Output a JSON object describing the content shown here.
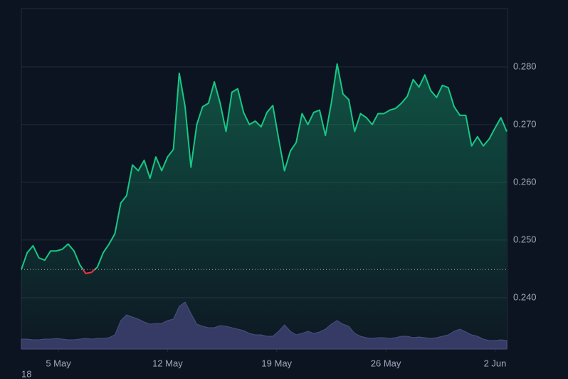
{
  "chart_data": {
    "type": "line",
    "x": [
      2.625,
      3,
      3.375,
      3.75,
      4.125,
      4.5,
      4.875,
      5.25,
      5.625,
      6,
      6.375,
      6.75,
      7.125,
      7.5,
      7.875,
      8.25,
      8.625,
      9,
      9.375,
      9.75,
      10.125,
      10.5,
      10.875,
      11.25,
      11.625,
      12,
      12.375,
      12.75,
      13.125,
      13.5,
      13.875,
      14.25,
      14.625,
      15,
      15.375,
      15.75,
      16.125,
      16.5,
      16.875,
      17.25,
      17.625,
      18,
      18.375,
      18.75,
      19.125,
      19.5,
      19.875,
      20.25,
      20.625,
      21,
      21.375,
      21.75,
      22.125,
      22.5,
      22.875,
      23.25,
      23.625,
      24,
      24.375,
      24.75,
      25.125,
      25.5,
      25.875,
      26.25,
      26.625,
      27,
      27.375,
      27.75,
      28.125,
      28.5,
      28.875,
      29.25,
      29.625,
      30,
      30.375,
      30.75,
      31.125,
      31.5,
      31.875,
      32.25,
      32.625,
      33,
      33.375,
      33.75
    ],
    "series": [
      {
        "color": "#16c784",
        "below_color": "#ea3943",
        "values": [
          0.2449,
          0.2478,
          0.249,
          0.2469,
          0.2465,
          0.2481,
          0.2481,
          0.2484,
          0.2493,
          0.2481,
          0.2457,
          0.2442,
          0.2444,
          0.2453,
          0.2478,
          0.2493,
          0.2511,
          0.2564,
          0.2577,
          0.263,
          0.262,
          0.2638,
          0.2607,
          0.2644,
          0.262,
          0.2644,
          0.2657,
          0.2789,
          0.2731,
          0.2626,
          0.27,
          0.2731,
          0.2737,
          0.2774,
          0.2737,
          0.2688,
          0.2756,
          0.2762,
          0.2721,
          0.27,
          0.2706,
          0.2696,
          0.2721,
          0.2733,
          0.2675,
          0.262,
          0.2654,
          0.2669,
          0.2719,
          0.27,
          0.2721,
          0.2725,
          0.2681,
          0.2737,
          0.2805,
          0.2753,
          0.2743,
          0.2688,
          0.2719,
          0.2712,
          0.27,
          0.2719,
          0.2719,
          0.2725,
          0.2728,
          0.2737,
          0.2749,
          0.2778,
          0.2765,
          0.2786,
          0.2759,
          0.2747,
          0.2768,
          0.2764,
          0.2731,
          0.2716,
          0.2716,
          0.2663,
          0.2679,
          0.2663,
          0.2675,
          0.2694,
          0.2712,
          0.2688
        ]
      },
      {
        "color": "#3a3f6b",
        "axis": "volume",
        "values": [
          14,
          14,
          13,
          13,
          14,
          14,
          15,
          14,
          13,
          13,
          14,
          15,
          14,
          15,
          15,
          16,
          20,
          40,
          48,
          45,
          42,
          38,
          35,
          36,
          36,
          40,
          42,
          60,
          66,
          50,
          35,
          32,
          30,
          30,
          33,
          32,
          30,
          28,
          26,
          22,
          20,
          20,
          18,
          18,
          25,
          34,
          25,
          20,
          22,
          25,
          22,
          24,
          28,
          35,
          40,
          35,
          32,
          22,
          18,
          16,
          15,
          16,
          16,
          15,
          16,
          18,
          18,
          16,
          17,
          16,
          15,
          16,
          18,
          20,
          25,
          28,
          24,
          20,
          18,
          14,
          12,
          12,
          13,
          12
        ]
      }
    ],
    "baseline": 0.2449,
    "xlim": [
      2.625,
      33.8
    ],
    "xticks": [
      {
        "value": 5,
        "label": "5 May"
      },
      {
        "value": 12,
        "label": "12 May"
      },
      {
        "value": 19,
        "label": "19 May"
      },
      {
        "value": 26,
        "label": "26 May"
      },
      {
        "value": 33,
        "label": "2 Jun"
      }
    ],
    "ylim": [
      0.2311,
      0.2901
    ],
    "yticks": [
      {
        "value": 0.24,
        "label": "0.240"
      },
      {
        "value": 0.25,
        "label": "0.250"
      },
      {
        "value": 0.26,
        "label": "0.260"
      },
      {
        "value": 0.27,
        "label": "0.270"
      },
      {
        "value": 0.28,
        "label": "0.280"
      }
    ],
    "volume_lim": [
      0,
      100
    ],
    "grid": true,
    "footnote": "18"
  }
}
